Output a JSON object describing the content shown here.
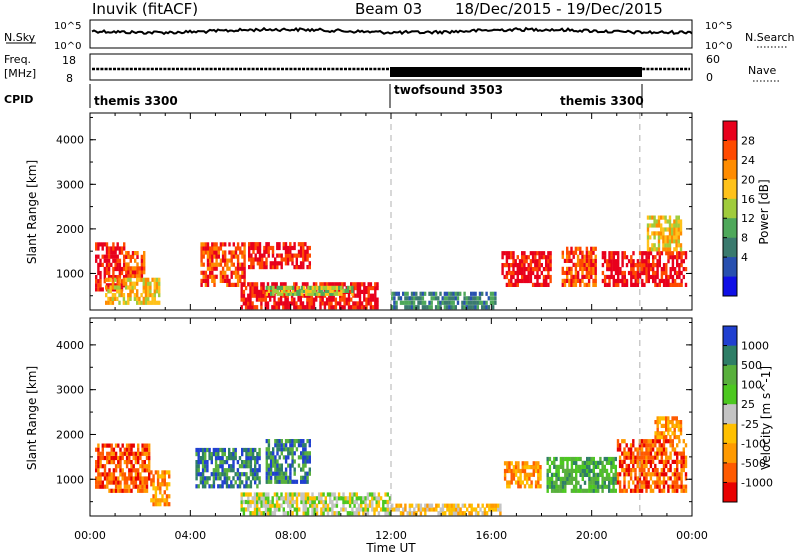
{
  "header": {
    "station": "Inuvik (fitACF)",
    "beam": "Beam 03",
    "date_range": "18/Dec/2015 - 19/Dec/2015"
  },
  "top_panels": {
    "nsky_label": "N.Sky",
    "nsky_ticks": [
      "10^5",
      "10^0"
    ],
    "nsearch_label": "N.Search",
    "nsearch_ticks": [
      "10^5",
      "10^0"
    ],
    "freq_label": "Freq.",
    "freq_unit": "[MHz]",
    "freq_ticks": [
      "18",
      "8"
    ],
    "nave_label": "Nave",
    "nave_ticks": [
      "60",
      "0"
    ],
    "cpid_label": "CPID",
    "cpid_segments": [
      "themis 3300",
      "twofsound 3503",
      "themis 3300"
    ]
  },
  "chart_data": [
    {
      "type": "heatmap",
      "title": "Power",
      "ylabel": "Slant Range [km]",
      "xlabel": "",
      "x_ticks": [
        "00:00",
        "04:00",
        "08:00",
        "12:00",
        "16:00",
        "20:00",
        "00:00"
      ],
      "y_ticks": [
        "1000",
        "2000",
        "3000",
        "4000"
      ],
      "ylim": [
        180,
        4600
      ],
      "xlim_hours": [
        0,
        24
      ],
      "colorbar": {
        "label": "Power [dB]",
        "ticks": [
          "28",
          "24",
          "20",
          "16",
          "12",
          "8",
          "4"
        ],
        "colors": [
          "#e8001c",
          "#ff4a00",
          "#ff8c00",
          "#ffc21a",
          "#a0cc3c",
          "#4ea85a",
          "#3a7a6e",
          "#2850b0",
          "#1010e6"
        ]
      },
      "regions": [
        {
          "t0": 0.2,
          "t1": 1.4,
          "r0": 600,
          "r1": 1700,
          "level": 0
        },
        {
          "t0": 1.4,
          "t1": 2.2,
          "r0": 900,
          "r1": 1500,
          "level": 1
        },
        {
          "t0": 0.6,
          "t1": 2.8,
          "r0": 300,
          "r1": 900,
          "level": 3
        },
        {
          "t0": 4.4,
          "t1": 6.2,
          "r0": 700,
          "r1": 1700,
          "level": 1
        },
        {
          "t0": 6.3,
          "t1": 8.8,
          "r0": 1100,
          "r1": 1700,
          "level": 0
        },
        {
          "t0": 6.0,
          "t1": 11.5,
          "r0": 200,
          "r1": 800,
          "level": 0
        },
        {
          "t0": 7.0,
          "t1": 10.5,
          "r0": 500,
          "r1": 700,
          "level": 4
        },
        {
          "t0": 12.0,
          "t1": 16.2,
          "r0": 200,
          "r1": 600,
          "level": 6
        },
        {
          "t0": 16.4,
          "t1": 18.4,
          "r0": 700,
          "r1": 1500,
          "level": 0
        },
        {
          "t0": 18.8,
          "t1": 20.2,
          "r0": 700,
          "r1": 1600,
          "level": 1
        },
        {
          "t0": 20.4,
          "t1": 23.8,
          "r0": 700,
          "r1": 1500,
          "level": 0
        },
        {
          "t0": 22.2,
          "t1": 23.6,
          "r0": 1500,
          "r1": 2300,
          "level": 3
        }
      ]
    },
    {
      "type": "heatmap",
      "title": "Velocity",
      "ylabel": "Slant Range [km]",
      "xlabel": "Time UT",
      "x_ticks": [
        "00:00",
        "04:00",
        "08:00",
        "12:00",
        "16:00",
        "20:00",
        "00:00"
      ],
      "y_ticks": [
        "1000",
        "2000",
        "3000",
        "4000"
      ],
      "ylim": [
        180,
        4600
      ],
      "xlim_hours": [
        0,
        24
      ],
      "colorbar": {
        "label": "Velocity [m s^-1]",
        "ticks": [
          "1000",
          "500",
          "100",
          "25",
          "-25",
          "-100",
          "-500",
          "-1000"
        ],
        "colors": [
          "#2040d0",
          "#2e7e66",
          "#58b03c",
          "#4cc820",
          "#c4c4c4",
          "#ffc000",
          "#ff9a00",
          "#ff5a00",
          "#e80000"
        ]
      },
      "regions": [
        {
          "t0": 0.2,
          "t1": 2.4,
          "r0": 700,
          "r1": 1800,
          "level": 7
        },
        {
          "t0": 2.4,
          "t1": 3.2,
          "r0": 400,
          "r1": 1200,
          "level": 6
        },
        {
          "t0": 4.2,
          "t1": 6.8,
          "r0": 800,
          "r1": 1700,
          "level": 1
        },
        {
          "t0": 7.0,
          "t1": 8.8,
          "r0": 900,
          "r1": 1900,
          "level": 1
        },
        {
          "t0": 6.0,
          "t1": 12.0,
          "r0": 200,
          "r1": 700,
          "level": 4
        },
        {
          "t0": 12.0,
          "t1": 16.4,
          "r0": 200,
          "r1": 450,
          "level": 5
        },
        {
          "t0": 16.5,
          "t1": 18.0,
          "r0": 800,
          "r1": 1400,
          "level": 6
        },
        {
          "t0": 18.2,
          "t1": 21.0,
          "r0": 700,
          "r1": 1500,
          "level": 2
        },
        {
          "t0": 21.0,
          "t1": 23.8,
          "r0": 700,
          "r1": 1900,
          "level": 7
        },
        {
          "t0": 22.5,
          "t1": 23.6,
          "r0": 1900,
          "r1": 2400,
          "level": 6
        }
      ]
    }
  ]
}
